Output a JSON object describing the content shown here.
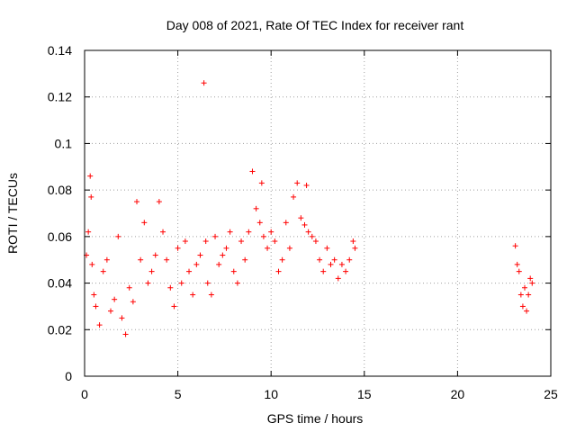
{
  "chart_data": {
    "type": "scatter",
    "title": "Day 008 of 2021, Rate Of TEC Index for receiver rant",
    "xlabel": "GPS time / hours",
    "ylabel": "ROTI / TECUs",
    "xlim": [
      0,
      25
    ],
    "ylim": [
      0,
      0.14
    ],
    "x_ticks": [
      "0",
      "5",
      "10",
      "15",
      "20",
      "25"
    ],
    "y_ticks": [
      "0",
      "0.02",
      "0.04",
      "0.06",
      "0.08",
      "0.1",
      "0.12",
      "0.14"
    ],
    "grid": true,
    "marker": "+",
    "colors": {
      "points": "#ff0000"
    },
    "series": [
      {
        "x": [
          0.1,
          0.2,
          0.3,
          0.35,
          0.4,
          0.5,
          0.6,
          0.8,
          1.0,
          1.2,
          1.4,
          1.6,
          1.8,
          2.0,
          2.2,
          2.4,
          2.6,
          2.8,
          3.0,
          3.2,
          3.4,
          3.6,
          3.8,
          4.0,
          4.2,
          4.4,
          4.6,
          4.8,
          5.0,
          5.2,
          5.4,
          5.6,
          5.8,
          6.0,
          6.2,
          6.4,
          6.5,
          6.6,
          6.8,
          7.0,
          7.2,
          7.4,
          7.6,
          7.8,
          8.0,
          8.2,
          8.4,
          8.6,
          8.8,
          9.0,
          9.2,
          9.4,
          9.5,
          9.6,
          9.8,
          10.0,
          10.2,
          10.4,
          10.6,
          10.8,
          11.0,
          11.2,
          11.4,
          11.6,
          11.8,
          11.9,
          12.0,
          12.2,
          12.4,
          12.6,
          12.8,
          13.0,
          13.2,
          13.4,
          13.6,
          13.8,
          14.0,
          14.2,
          14.4,
          14.5,
          23.1,
          23.2,
          23.3,
          23.4,
          23.5,
          23.6,
          23.7,
          23.8,
          23.9,
          24.0
        ],
        "y": [
          0.052,
          0.062,
          0.086,
          0.077,
          0.048,
          0.035,
          0.03,
          0.022,
          0.045,
          0.05,
          0.028,
          0.033,
          0.06,
          0.025,
          0.018,
          0.038,
          0.032,
          0.075,
          0.05,
          0.066,
          0.04,
          0.045,
          0.052,
          0.075,
          0.062,
          0.05,
          0.038,
          0.03,
          0.055,
          0.04,
          0.058,
          0.045,
          0.035,
          0.048,
          0.052,
          0.126,
          0.058,
          0.04,
          0.035,
          0.06,
          0.048,
          0.052,
          0.055,
          0.062,
          0.045,
          0.04,
          0.058,
          0.05,
          0.062,
          0.088,
          0.072,
          0.066,
          0.083,
          0.06,
          0.055,
          0.062,
          0.058,
          0.045,
          0.05,
          0.066,
          0.055,
          0.077,
          0.083,
          0.068,
          0.065,
          0.082,
          0.062,
          0.06,
          0.058,
          0.05,
          0.045,
          0.055,
          0.048,
          0.05,
          0.042,
          0.048,
          0.045,
          0.05,
          0.058,
          0.055,
          0.056,
          0.048,
          0.045,
          0.035,
          0.03,
          0.038,
          0.028,
          0.035,
          0.042,
          0.04
        ]
      }
    ]
  }
}
